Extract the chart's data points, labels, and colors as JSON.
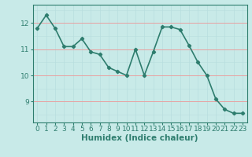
{
  "x": [
    0,
    1,
    2,
    3,
    4,
    5,
    6,
    7,
    8,
    9,
    10,
    11,
    12,
    13,
    14,
    15,
    16,
    17,
    18,
    19,
    20,
    21,
    22,
    23
  ],
  "y": [
    11.8,
    12.3,
    11.8,
    11.1,
    11.1,
    11.4,
    10.9,
    10.8,
    10.3,
    10.15,
    10.0,
    11.0,
    10.0,
    10.9,
    11.85,
    11.85,
    11.75,
    11.15,
    10.5,
    10.0,
    9.1,
    8.7,
    8.55,
    8.55
  ],
  "xlabel": "Humidex (Indice chaleur)",
  "xlim": [
    -0.5,
    23.5
  ],
  "ylim": [
    8.2,
    12.7
  ],
  "yticks": [
    9,
    10,
    11,
    12
  ],
  "xticks": [
    0,
    1,
    2,
    3,
    4,
    5,
    6,
    7,
    8,
    9,
    10,
    11,
    12,
    13,
    14,
    15,
    16,
    17,
    18,
    19,
    20,
    21,
    22,
    23
  ],
  "line_color": "#2e7d6e",
  "bg_color": "#c8eae8",
  "grid_color_major": "#e8a0a0",
  "grid_color_minor": "#b8dede",
  "marker": "D",
  "marker_size": 2.2,
  "line_width": 1.2,
  "xlabel_fontsize": 7.5,
  "tick_fontsize": 6.5
}
